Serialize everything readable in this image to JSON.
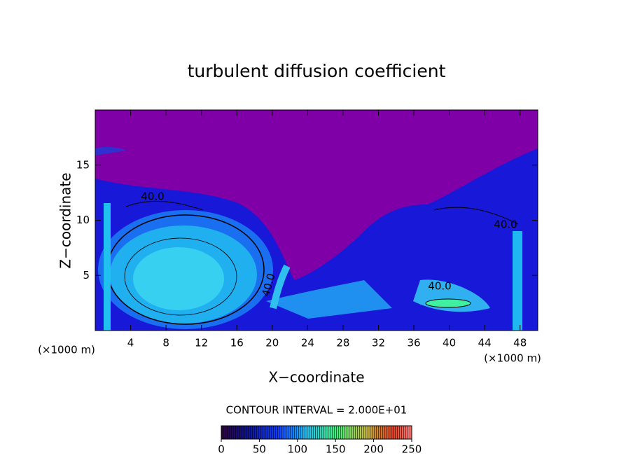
{
  "chart_data": {
    "type": "contour",
    "title": "turbulent diffusion coefficient",
    "x_label": "X−coordinate",
    "y_label": "Z−coordinate",
    "x_unit_left": "(×1000 m)",
    "x_unit_right": "(×1000 m)",
    "xlim": [
      0,
      50
    ],
    "xticks": [
      4,
      8,
      12,
      16,
      20,
      24,
      28,
      32,
      36,
      40,
      44,
      48
    ],
    "ylim": [
      0,
      20
    ],
    "yticks": [
      5,
      10,
      15
    ],
    "contour_labels": [
      "40.0",
      "40.0",
      "40.0",
      "40.0"
    ],
    "contour_interval_label": "CONTOUR INTERVAL = 2.000E+01",
    "clim": [
      0,
      250
    ],
    "cticks": [
      0,
      50,
      100,
      150,
      200,
      250
    ]
  }
}
